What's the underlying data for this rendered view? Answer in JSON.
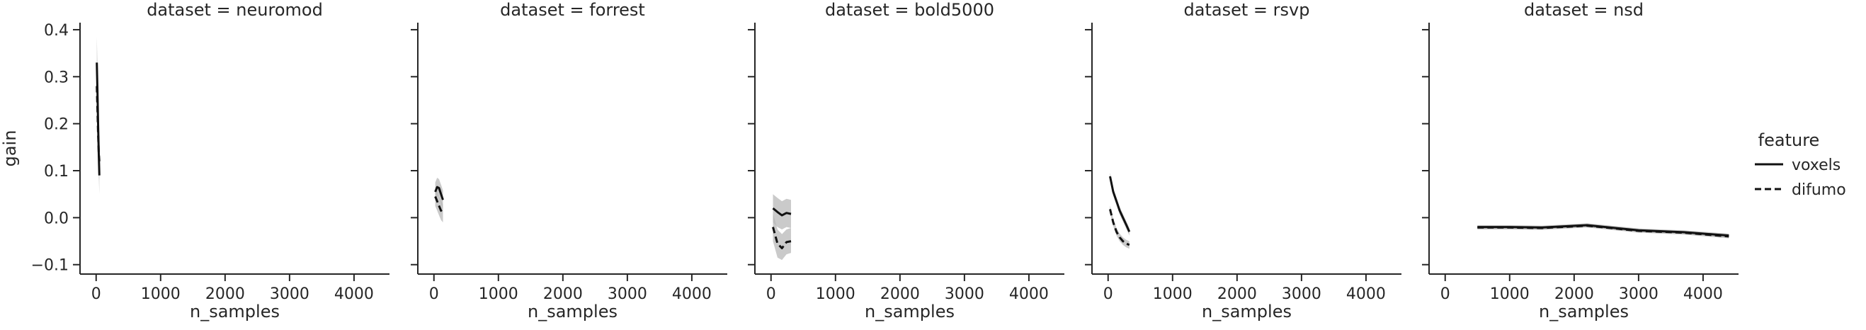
{
  "chart_data": {
    "type": "line",
    "facet_title_prefix": "dataset = ",
    "xlabel": "n_samples",
    "ylabel": "gain",
    "xlim": [
      -250,
      4550
    ],
    "ylim": [
      -0.12,
      0.415
    ],
    "xticks": [
      0,
      1000,
      2000,
      3000,
      4000
    ],
    "yticks": [
      -0.1,
      0.0,
      0.1,
      0.2,
      0.3,
      0.4
    ],
    "ytick_labels": [
      "−0.1",
      "0.0",
      "0.1",
      "0.2",
      "0.3",
      "0.4"
    ],
    "grid": false,
    "legend": {
      "title": "feature",
      "placement": "right",
      "entries": [
        {
          "name": "voxels",
          "dash": "solid"
        },
        {
          "name": "difumo",
          "dash": "dashed"
        }
      ]
    },
    "colors": {
      "line": "#111111",
      "band": "#b8b8b8",
      "axis": "#262626"
    },
    "panels": [
      {
        "dataset": "neuromod",
        "series": [
          {
            "name": "voxels",
            "x": [
              10,
              20,
              30,
              40,
              50
            ],
            "y": [
              0.33,
              0.27,
              0.2,
              0.14,
              0.09
            ],
            "lo": [
              0.28,
              0.21,
              0.14,
              0.09,
              0.05
            ],
            "hi": [
              0.385,
              0.33,
              0.26,
              0.2,
              0.14
            ]
          },
          {
            "name": "difumo",
            "x": [
              10,
              20,
              30,
              40,
              50
            ],
            "y": [
              0.28,
              0.23,
              0.18,
              0.14,
              0.12
            ],
            "lo": [
              0.23,
              0.18,
              0.13,
              0.1,
              0.08
            ],
            "hi": [
              0.33,
              0.28,
              0.23,
              0.18,
              0.16
            ]
          }
        ]
      },
      {
        "dataset": "forrest",
        "series": [
          {
            "name": "voxels",
            "x": [
              20,
              50,
              80,
              110,
              140
            ],
            "y": [
              0.055,
              0.065,
              0.063,
              0.05,
              0.038
            ],
            "lo": [
              0.035,
              0.045,
              0.045,
              0.03,
              0.015
            ],
            "hi": [
              0.075,
              0.085,
              0.082,
              0.07,
              0.058
            ]
          },
          {
            "name": "difumo",
            "x": [
              20,
              50,
              80,
              110,
              140
            ],
            "y": [
              0.045,
              0.035,
              0.025,
              0.015,
              0.008
            ],
            "lo": [
              0.025,
              0.015,
              0.005,
              -0.005,
              -0.01
            ],
            "hi": [
              0.065,
              0.055,
              0.045,
              0.035,
              0.028
            ]
          }
        ]
      },
      {
        "dataset": "bold5000",
        "series": [
          {
            "name": "voxels",
            "x": [
              30,
              100,
              170,
              240,
              310
            ],
            "y": [
              0.02,
              0.012,
              0.005,
              0.01,
              0.008
            ],
            "lo": [
              -0.01,
              -0.02,
              -0.025,
              -0.02,
              -0.022
            ],
            "hi": [
              0.05,
              0.042,
              0.035,
              0.04,
              0.038
            ]
          },
          {
            "name": "difumo",
            "x": [
              30,
              100,
              170,
              240,
              310
            ],
            "y": [
              -0.02,
              -0.055,
              -0.065,
              -0.052,
              -0.05
            ],
            "lo": [
              -0.05,
              -0.085,
              -0.09,
              -0.078,
              -0.075
            ],
            "hi": [
              0.01,
              -0.025,
              -0.035,
              -0.025,
              -0.022
            ]
          }
        ]
      },
      {
        "dataset": "rsvp",
        "series": [
          {
            "name": "voxels",
            "x": [
              30,
              80,
              130,
              180,
              230,
              280,
              330
            ],
            "y": [
              0.088,
              0.055,
              0.035,
              0.015,
              0.0,
              -0.015,
              -0.03
            ],
            "lo": [
              0.08,
              0.047,
              0.027,
              0.007,
              -0.008,
              -0.023,
              -0.038
            ],
            "hi": [
              0.096,
              0.063,
              0.043,
              0.023,
              0.008,
              -0.007,
              -0.022
            ]
          },
          {
            "name": "difumo",
            "x": [
              30,
              80,
              130,
              180,
              230,
              280,
              330
            ],
            "y": [
              0.018,
              -0.01,
              -0.03,
              -0.042,
              -0.05,
              -0.055,
              -0.058
            ],
            "lo": [
              0.01,
              -0.018,
              -0.038,
              -0.05,
              -0.058,
              -0.063,
              -0.066
            ],
            "hi": [
              0.026,
              -0.002,
              -0.022,
              -0.034,
              -0.042,
              -0.047,
              -0.05
            ]
          }
        ]
      },
      {
        "dataset": "nsd",
        "series": [
          {
            "name": "voxels",
            "x": [
              500,
              1000,
              1500,
              2200,
              3000,
              3700,
              4400
            ],
            "y": [
              -0.02,
              -0.02,
              -0.021,
              -0.016,
              -0.027,
              -0.031,
              -0.038
            ],
            "lo": [
              -0.024,
              -0.024,
              -0.025,
              -0.02,
              -0.031,
              -0.035,
              -0.042
            ],
            "hi": [
              -0.016,
              -0.016,
              -0.017,
              -0.012,
              -0.023,
              -0.027,
              -0.034
            ]
          },
          {
            "name": "difumo",
            "x": [
              500,
              1000,
              1500,
              2200,
              3000,
              3700,
              4400
            ],
            "y": [
              -0.021,
              -0.021,
              -0.022,
              -0.017,
              -0.028,
              -0.032,
              -0.04
            ],
            "lo": [
              -0.025,
              -0.025,
              -0.026,
              -0.021,
              -0.032,
              -0.036,
              -0.044
            ],
            "hi": [
              -0.017,
              -0.017,
              -0.018,
              -0.013,
              -0.024,
              -0.028,
              -0.036
            ]
          }
        ]
      }
    ]
  }
}
